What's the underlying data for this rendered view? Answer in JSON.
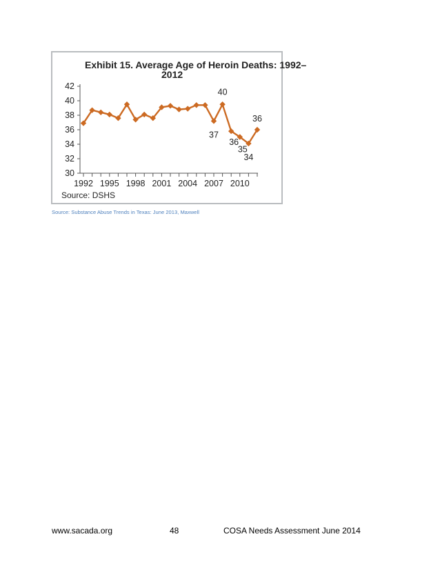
{
  "chart_data": {
    "type": "line",
    "title_lines": [
      "Exhibit 15. Average Age of Heroin Deaths: 1992–",
      "2012"
    ],
    "source_note": "Source: DSHS",
    "x": [
      1992,
      1993,
      1994,
      1995,
      1996,
      1997,
      1998,
      1999,
      2000,
      2001,
      2002,
      2003,
      2004,
      2005,
      2006,
      2007,
      2008,
      2009,
      2010,
      2011,
      2012
    ],
    "values": [
      36.9,
      38.7,
      38.4,
      38.1,
      37.6,
      39.5,
      37.4,
      38.1,
      37.6,
      39.1,
      39.3,
      38.8,
      38.9,
      39.4,
      39.4,
      37.2,
      39.5,
      35.8,
      35.0,
      34.1,
      36.0
    ],
    "x_tick_labels": [
      "1992",
      "1995",
      "1998",
      "2001",
      "2004",
      "2007",
      "2010"
    ],
    "y_tick_labels": [
      "30",
      "32",
      "34",
      "36",
      "38",
      "40",
      "42"
    ],
    "ylim": [
      30,
      42
    ],
    "data_labels": [
      {
        "year": 2007,
        "text": "37"
      },
      {
        "year": 2008,
        "text": "40"
      },
      {
        "year": 2009,
        "text": "36"
      },
      {
        "year": 2010,
        "text": "35"
      },
      {
        "year": 2011,
        "text": "34"
      },
      {
        "year": 2012,
        "text": "36"
      }
    ],
    "line_color": "#cc6a22"
  },
  "caption": "Source: Substance Abuse Trends in Texas: June 2013, Maxwell",
  "footer": {
    "website": "www.sacada.org",
    "page_number": "48",
    "document": "COSA Needs Assessment June 2014"
  }
}
